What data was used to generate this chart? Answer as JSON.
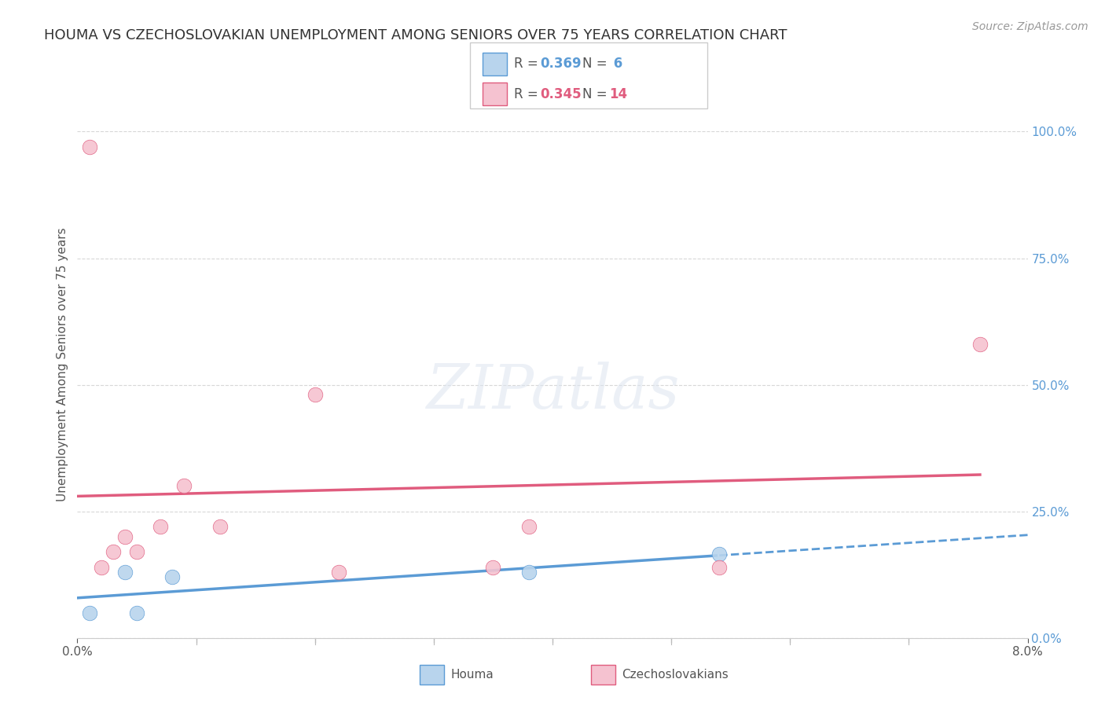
{
  "title": "HOUMA VS CZECHOSLOVAKIAN UNEMPLOYMENT AMONG SENIORS OVER 75 YEARS CORRELATION CHART",
  "source": "Source: ZipAtlas.com",
  "ylabel": "Unemployment Among Seniors over 75 years",
  "xlim": [
    0.0,
    0.08
  ],
  "ylim": [
    0.0,
    1.08
  ],
  "ytick_labels": [
    "0.0%",
    "25.0%",
    "50.0%",
    "75.0%",
    "100.0%"
  ],
  "ytick_values": [
    0.0,
    0.25,
    0.5,
    0.75,
    1.0
  ],
  "background_color": "#ffffff",
  "houma": {
    "label": "Houma",
    "color": "#b8d4ed",
    "trend_color": "#5b9bd5",
    "R": 0.369,
    "N": 6,
    "x": [
      0.001,
      0.004,
      0.005,
      0.008,
      0.038,
      0.054
    ],
    "y": [
      0.05,
      0.13,
      0.05,
      0.12,
      0.13,
      0.165
    ]
  },
  "czech": {
    "label": "Czechoslovakians",
    "color": "#f5c2d0",
    "trend_color": "#e05c7e",
    "R": 0.345,
    "N": 14,
    "x": [
      0.001,
      0.002,
      0.003,
      0.004,
      0.005,
      0.007,
      0.009,
      0.012,
      0.02,
      0.022,
      0.035,
      0.038,
      0.054,
      0.076
    ],
    "y": [
      0.97,
      0.14,
      0.17,
      0.2,
      0.17,
      0.22,
      0.3,
      0.22,
      0.48,
      0.13,
      0.14,
      0.22,
      0.14,
      0.58
    ]
  },
  "grid_color": "#d8d8d8",
  "title_fontsize": 13,
  "axis_label_fontsize": 11,
  "tick_fontsize": 11,
  "legend_fontsize": 12,
  "source_fontsize": 10,
  "marker_size": 180,
  "watermark": "ZIPatlas"
}
